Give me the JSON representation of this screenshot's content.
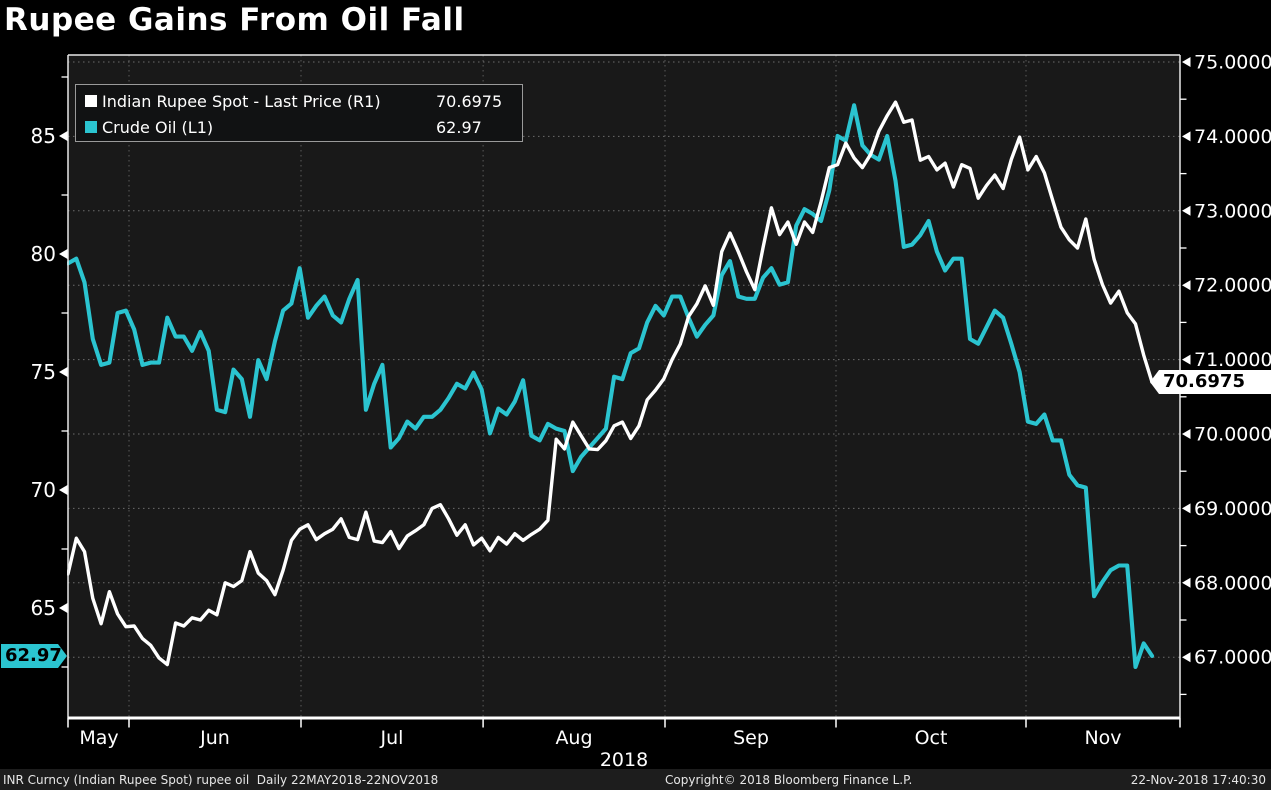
{
  "window": {
    "title": "Rupee Gains From Oil Fall"
  },
  "legend": {
    "items": [
      {
        "label": "Indian Rupee Spot - Last Price (R1)",
        "value": "70.6975",
        "color": "#ffffff",
        "axis": "right"
      },
      {
        "label": "Crude Oil (L1)",
        "value": "62.97",
        "color": "#2bc4d0",
        "axis": "left"
      }
    ]
  },
  "price_tags": {
    "rupee": "70.6975",
    "oil": "62.97"
  },
  "chart_data": {
    "type": "line",
    "title": "Rupee Gains From Oil Fall",
    "x_range": "22MAY2018-22NOV2018",
    "frequency": "Daily",
    "grid": true,
    "legend_position": "top-left",
    "axes": {
      "left": {
        "series": "Crude Oil (L1)",
        "ticks": [
          85,
          80,
          75,
          70,
          65
        ],
        "minor_ticks": [
          87.5,
          82.5,
          77.5,
          72.5,
          67.5,
          62.5
        ],
        "range": [
          60.3,
          88.4
        ],
        "last_price": 62.97
      },
      "right": {
        "series": "Indian Rupee Spot - Last Price (R1)",
        "ticks": [
          75,
          74,
          73,
          72,
          71,
          70,
          69,
          68,
          67
        ],
        "minor_ticks": [
          74.5,
          73.5,
          72.5,
          71.5,
          70.5,
          69.5,
          68.5,
          67.5,
          66.5
        ],
        "decimals": 4,
        "range": [
          66.2,
          75.1
        ],
        "last_price": 70.6975
      }
    },
    "x_axis": {
      "year_label": "2018",
      "months": [
        {
          "label": "May",
          "fx": 0.0286
        },
        {
          "label": "Jun",
          "fx": 0.1356
        },
        {
          "label": "Jul",
          "fx": 0.2989
        },
        {
          "label": "Aug",
          "fx": 0.4668
        },
        {
          "label": "Sep",
          "fx": 0.6301
        },
        {
          "label": "Oct",
          "fx": 0.7961
        },
        {
          "label": "Nov",
          "fx": 0.9548
        }
      ],
      "month_boundaries_fx": [
        0.0563,
        0.2149,
        0.3829,
        0.5507,
        0.7085,
        0.8838
      ]
    },
    "series": [
      {
        "name": "Crude Oil (L1)",
        "axis": "left",
        "color": "#2bc4d0",
        "last": 62.97,
        "values": [
          79.6,
          79.8,
          78.8,
          76.4,
          75.3,
          75.4,
          77.5,
          77.6,
          76.8,
          75.3,
          75.4,
          75.4,
          77.3,
          76.5,
          76.5,
          75.9,
          76.7,
          75.9,
          73.4,
          73.3,
          75.1,
          74.7,
          73.1,
          75.5,
          74.7,
          76.3,
          77.6,
          77.9,
          79.4,
          77.3,
          77.8,
          78.2,
          77.4,
          77.1,
          78.1,
          78.9,
          73.4,
          74.5,
          75.3,
          71.8,
          72.2,
          72.9,
          72.6,
          73.1,
          73.1,
          73.4,
          73.9,
          74.5,
          74.3,
          74.97,
          74.25,
          72.4,
          73.45,
          73.2,
          73.75,
          74.65,
          72.3,
          72.1,
          72.8,
          72.6,
          72.5,
          70.8,
          71.4,
          71.8,
          72.2,
          72.6,
          74.8,
          74.7,
          75.8,
          76.0,
          77.1,
          77.8,
          77.4,
          78.2,
          78.2,
          77.3,
          76.5,
          77.0,
          77.4,
          79.1,
          79.7,
          78.2,
          78.1,
          78.1,
          79.0,
          79.4,
          78.7,
          78.8,
          81.2,
          81.9,
          81.7,
          81.4,
          82.7,
          85.0,
          84.8,
          86.3,
          84.6,
          84.2,
          84.0,
          85.0,
          83.1,
          80.3,
          80.4,
          80.8,
          81.4,
          80.1,
          79.3,
          79.8,
          79.8,
          76.4,
          76.2,
          76.9,
          77.6,
          77.3,
          76.2,
          75.0,
          72.9,
          72.8,
          73.2,
          72.1,
          72.1,
          70.65,
          70.2,
          70.1,
          65.5,
          66.1,
          66.6,
          66.8,
          66.8,
          62.5,
          63.5,
          62.97
        ]
      },
      {
        "name": "Indian Rupee Spot - Last Price (R1)",
        "axis": "right",
        "color": "#ffffff",
        "last": 70.6975,
        "values": [
          68.12,
          68.6,
          68.42,
          67.79,
          67.45,
          67.88,
          67.58,
          67.41,
          67.42,
          67.25,
          67.16,
          66.99,
          66.9,
          67.46,
          67.42,
          67.53,
          67.5,
          67.63,
          67.57,
          68.0,
          67.95,
          68.03,
          68.42,
          68.13,
          68.03,
          67.84,
          68.17,
          68.57,
          68.72,
          68.78,
          68.58,
          68.66,
          68.72,
          68.86,
          68.61,
          68.58,
          68.95,
          68.56,
          68.54,
          68.69,
          68.46,
          68.63,
          68.7,
          68.78,
          69.0,
          69.05,
          68.86,
          68.64,
          68.78,
          68.51,
          68.6,
          68.43,
          68.61,
          68.52,
          68.66,
          68.57,
          68.65,
          68.72,
          68.84,
          69.93,
          69.8,
          70.16,
          69.98,
          69.8,
          69.79,
          69.91,
          70.11,
          70.16,
          69.94,
          70.11,
          70.46,
          70.59,
          70.74,
          71.0,
          71.21,
          71.58,
          71.75,
          71.99,
          71.73,
          72.45,
          72.7,
          72.45,
          72.18,
          71.94,
          72.51,
          73.04,
          72.68,
          72.85,
          72.55,
          72.85,
          72.71,
          73.12,
          73.58,
          73.62,
          73.91,
          73.71,
          73.58,
          73.76,
          74.07,
          74.28,
          74.46,
          74.19,
          74.22,
          73.68,
          73.73,
          73.55,
          73.64,
          73.32,
          73.62,
          73.57,
          73.17,
          73.34,
          73.48,
          73.3,
          73.69,
          73.99,
          73.55,
          73.73,
          73.51,
          73.14,
          72.78,
          72.61,
          72.5,
          72.89,
          72.35,
          72.01,
          71.76,
          71.92,
          71.63,
          71.48,
          71.06,
          70.6975
        ]
      }
    ]
  },
  "footer": {
    "left": "INR Curncy (Indian Rupee Spot) rupee oil  Daily 22MAY2018-22NOV2018",
    "center": "Copyright© 2018 Bloomberg Finance L.P.",
    "right": "22-Nov-2018 17:40:30"
  }
}
